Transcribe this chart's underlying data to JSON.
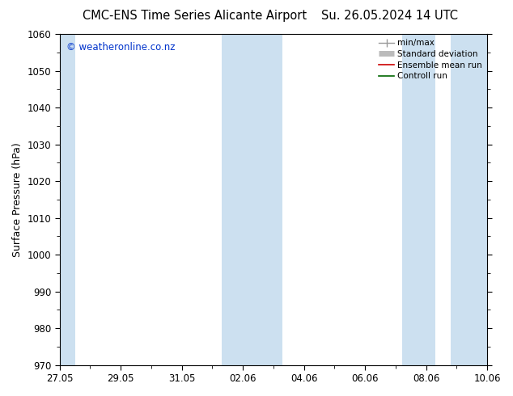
{
  "title_left": "CMC-ENS Time Series Alicante Airport",
  "title_right": "Su. 26.05.2024 14 UTC",
  "ylabel": "Surface Pressure (hPa)",
  "ylim": [
    970,
    1060
  ],
  "yticks": [
    970,
    980,
    990,
    1000,
    1010,
    1020,
    1030,
    1040,
    1050,
    1060
  ],
  "xtick_labels": [
    "27.05",
    "29.05",
    "31.05",
    "02.06",
    "04.06",
    "06.06",
    "08.06",
    "10.06"
  ],
  "xtick_positions": [
    0,
    2,
    4,
    6,
    8,
    10,
    12,
    14
  ],
  "x_total_days": 14,
  "shaded_bands": [
    {
      "x_start": -0.15,
      "x_end": 0.5
    },
    {
      "x_start": 5.3,
      "x_end": 7.3
    },
    {
      "x_start": 11.2,
      "x_end": 12.3
    },
    {
      "x_start": 12.8,
      "x_end": 14.15
    }
  ],
  "band_color": "#cce0f0",
  "background_color": "#ffffff",
  "plot_bg_color": "#ffffff",
  "watermark": "© weatheronline.co.nz",
  "watermark_color": "#0033cc",
  "legend_items": [
    {
      "label": "min/max",
      "color": "#999999",
      "lw": 1.0
    },
    {
      "label": "Standard deviation",
      "color": "#bbbbbb",
      "lw": 5
    },
    {
      "label": "Ensemble mean run",
      "color": "#cc0000",
      "lw": 1.2
    },
    {
      "label": "Controll run",
      "color": "#006600",
      "lw": 1.2
    }
  ],
  "title_fontsize": 10.5,
  "tick_fontsize": 8.5,
  "ylabel_fontsize": 9,
  "watermark_fontsize": 8.5
}
